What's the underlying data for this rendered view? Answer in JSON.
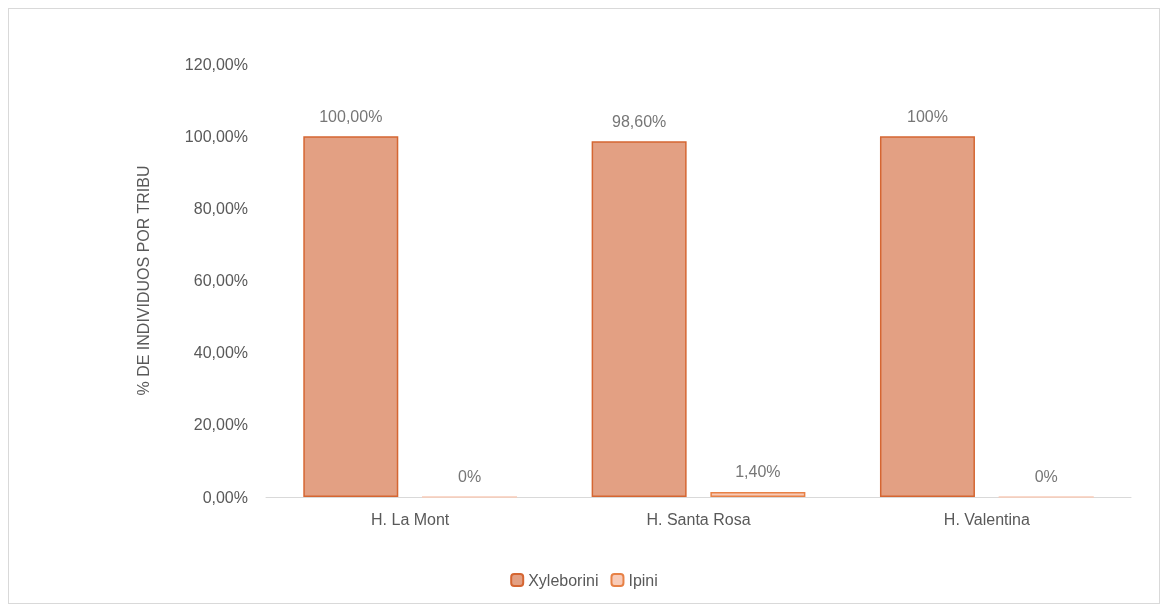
{
  "chart_data": {
    "type": "bar",
    "ylabel": "% DE INDIVIDUOS POR TRIBU",
    "categories": [
      "H. La Mont",
      "H. Santa Rosa",
      "H. Valentina"
    ],
    "series": [
      {
        "name": "Xyleborini",
        "color": "#e3a083",
        "values": [
          100,
          98.6,
          100
        ],
        "value_labels": [
          "100,00%",
          "98,60%",
          "100%"
        ]
      },
      {
        "name": "Ipini",
        "color": "#f8cbb8",
        "values": [
          0,
          1.4,
          0
        ],
        "value_labels": [
          "0%",
          "1,40%",
          "0%"
        ]
      }
    ],
    "ylim": [
      0,
      120
    ],
    "yticks": [
      {
        "value": 0,
        "label": "0,00%"
      },
      {
        "value": 20,
        "label": "20,00%"
      },
      {
        "value": 40,
        "label": "40,00%"
      },
      {
        "value": 60,
        "label": "60,00%"
      },
      {
        "value": 80,
        "label": "80,00%"
      },
      {
        "value": 100,
        "label": "100,00%"
      },
      {
        "value": 120,
        "label": "120,00%"
      }
    ],
    "grid": false,
    "legend": "bottom"
  }
}
